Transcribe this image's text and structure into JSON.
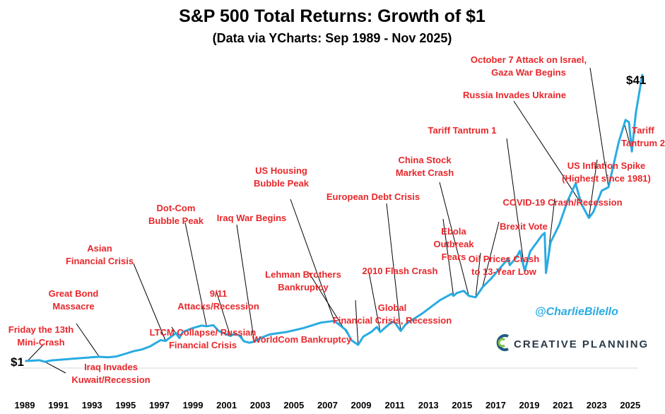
{
  "chart_data": {
    "type": "line",
    "title": "S&P 500 Total Returns: Growth of $1",
    "subtitle": "(Data via YCharts: Sep 1989 - Nov 2025)",
    "xlabel": "",
    "ylabel": "",
    "grid": false,
    "xlim": [
      1989.0,
      2026.0
    ],
    "ylim": [
      0,
      45
    ],
    "x_ticks": [
      "1989",
      "1991",
      "1993",
      "1995",
      "1997",
      "1999",
      "2001",
      "2003",
      "2005",
      "2007",
      "2009",
      "2011",
      "2013",
      "2015",
      "2017",
      "2019",
      "2021",
      "2023",
      "2025"
    ],
    "start_label": "$1",
    "end_label": "$41",
    "series": [
      {
        "name": "S&P 500 Total Return",
        "color": "#29abe2",
        "x": [
          1989.7,
          1990.0,
          1990.5,
          1990.8,
          1991.2,
          1991.6,
          1992.5,
          1993.5,
          1994.0,
          1994.5,
          1995.0,
          1995.5,
          1996.0,
          1996.5,
          1997.0,
          1997.6,
          1997.9,
          1998.5,
          1998.7,
          1998.9,
          1999.5,
          2000.0,
          2000.3,
          2000.7,
          2001.0,
          2001.7,
          2001.9,
          2002.2,
          2002.5,
          2002.8,
          2003.1,
          2003.5,
          2004.0,
          2005.0,
          2006.0,
          2007.0,
          2007.8,
          2008.5,
          2008.8,
          2009.2,
          2009.5,
          2010.0,
          2010.3,
          2010.5,
          2011.0,
          2011.3,
          2011.7,
          2012.0,
          2013.0,
          2014.0,
          2014.7,
          2014.8,
          2015.0,
          2015.4,
          2015.7,
          2016.1,
          2016.5,
          2017.0,
          2018.0,
          2018.1,
          2018.5,
          2018.7,
          2018.98,
          2019.3,
          2020.0,
          2020.15,
          2020.23,
          2020.5,
          2021.0,
          2021.5,
          2021.97,
          2022.3,
          2022.75,
          2023.0,
          2023.5,
          2023.9,
          2024.5,
          2024.9,
          2025.1,
          2025.27,
          2025.5,
          2025.88
        ],
        "values": [
          1.0,
          1.03,
          1.1,
          0.88,
          1.08,
          1.15,
          1.32,
          1.5,
          1.58,
          1.5,
          1.62,
          1.98,
          2.35,
          2.6,
          3.05,
          3.9,
          3.8,
          4.9,
          4.2,
          5.05,
          5.6,
          5.95,
          5.85,
          6.0,
          5.2,
          4.5,
          4.75,
          4.6,
          3.75,
          3.55,
          3.7,
          4.25,
          4.7,
          5.05,
          5.6,
          6.35,
          6.6,
          5.3,
          3.9,
          3.25,
          4.4,
          5.1,
          5.75,
          5.05,
          6.1,
          6.55,
          5.2,
          6.15,
          7.7,
          9.5,
          10.4,
          10.1,
          10.5,
          10.8,
          10.1,
          9.9,
          11.3,
          12.5,
          15.3,
          14.4,
          15.5,
          16.4,
          13.6,
          16.3,
          18.6,
          18.9,
          13.3,
          17.6,
          20.0,
          23.4,
          25.8,
          23.0,
          21.0,
          21.8,
          24.8,
          25.3,
          31.6,
          34.7,
          34.4,
          30.3,
          35.6,
          41.0
        ]
      }
    ],
    "annotations": [
      {
        "lines": [
          "Friday the 13th",
          "Mini-Crash"
        ],
        "x": 1989.8,
        "value": 1.03
      },
      {
        "lines": [
          "Iraq Invades",
          "Kuwait/Recession"
        ],
        "x": 1990.8,
        "value": 0.88
      },
      {
        "lines": [
          "Great Bond",
          "Massacre"
        ],
        "x": 1994.0,
        "value": 1.58
      },
      {
        "lines": [
          "Asian",
          "Financial Crisis"
        ],
        "x": 1997.9,
        "value": 3.8
      },
      {
        "lines": [
          "LTCM Collapse/ Russian",
          "Financial Crisis"
        ],
        "x": 1998.7,
        "value": 4.2
      },
      {
        "lines": [
          "Dot-Com",
          "Bubble Peak"
        ],
        "x": 2000.3,
        "value": 5.85
      },
      {
        "lines": [
          "9/11",
          "Attacks/Recession"
        ],
        "x": 2001.7,
        "value": 4.5
      },
      {
        "lines": [
          "Iraq War Begins"
        ],
        "x": 2003.1,
        "value": 3.7
      },
      {
        "lines": [
          "WorldCom Bankruptcy"
        ],
        "x": 2002.5,
        "value": 3.75
      },
      {
        "lines": [
          "US Housing",
          "Bubble Peak"
        ],
        "x": 2007.8,
        "value": 6.6
      },
      {
        "lines": [
          "Lehman Brothers",
          "Bankruptcy"
        ],
        "x": 2008.8,
        "value": 3.9
      },
      {
        "lines": [
          "Global",
          "Financial Crisis, Recession"
        ],
        "x": 2009.2,
        "value": 3.25
      },
      {
        "lines": [
          "European Debt Crisis"
        ],
        "x": 2011.7,
        "value": 5.2
      },
      {
        "lines": [
          "2010 Flash Crash"
        ],
        "x": 2010.5,
        "value": 5.05
      },
      {
        "lines": [
          "China Stock",
          "Market Crash"
        ],
        "x": 2015.7,
        "value": 10.1
      },
      {
        "lines": [
          "Ebola",
          "Outbreak",
          "Fears"
        ],
        "x": 2014.8,
        "value": 10.1
      },
      {
        "lines": [
          "Oil Prices Crash",
          "to 13-Year Low"
        ],
        "x": 2016.1,
        "value": 9.9
      },
      {
        "lines": [
          "Brexit Vote"
        ],
        "x": 2016.5,
        "value": 11.3
      },
      {
        "lines": [
          "Tariff Tantrum 1"
        ],
        "x": 2018.98,
        "value": 13.6
      },
      {
        "lines": [
          "COVID-19 Crash/Recession"
        ],
        "x": 2020.23,
        "value": 13.3
      },
      {
        "lines": [
          "Russia Invades Ukraine"
        ],
        "x": 2022.3,
        "value": 23.0
      },
      {
        "lines": [
          "US Inflation Spike",
          "(Highest since 1981)"
        ],
        "x": 2022.75,
        "value": 21.0
      },
      {
        "lines": [
          "October 7 Attack on Israel,",
          "Gaza War Begins"
        ],
        "x": 2023.9,
        "value": 25.3
      },
      {
        "lines": [
          "Tariff",
          "Tantrum 2"
        ],
        "x": 2025.27,
        "value": 30.3
      }
    ]
  },
  "branding": {
    "handle": "@CharlieBilello",
    "company": "CREATIVE PLANNING",
    "handle_color": "#29abe2",
    "annotation_color": "#e8272b",
    "line_color": "#29abe2"
  }
}
